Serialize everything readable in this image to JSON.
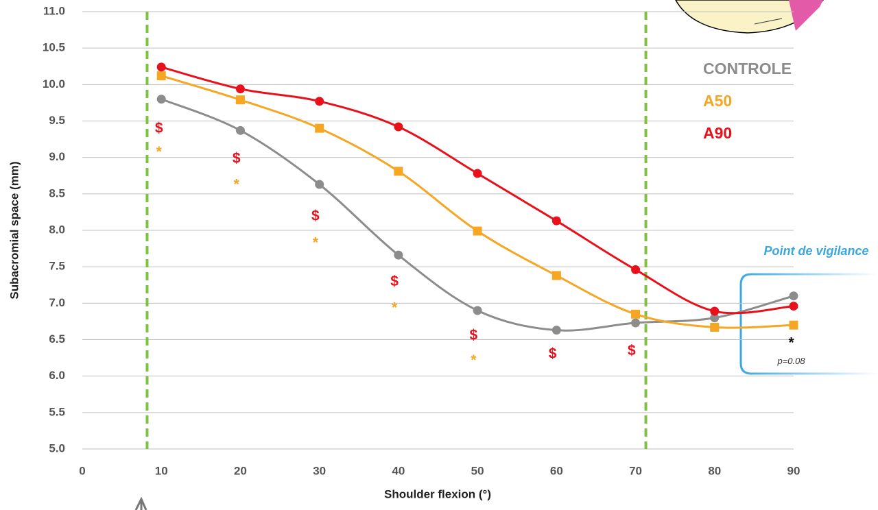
{
  "chart_data": {
    "type": "line",
    "x_label": "Shoulder flexion (°)",
    "y_label": "Subacromial space (mm)",
    "x": [
      10,
      20,
      30,
      40,
      50,
      60,
      70,
      80,
      90
    ],
    "series": [
      {
        "name": "CONTROLE",
        "color": "#8c8c8c",
        "marker": "circle",
        "values": [
          9.8,
          9.37,
          8.63,
          7.66,
          6.9,
          6.63,
          6.73,
          6.8,
          7.1
        ]
      },
      {
        "name": "A50",
        "color": "#f5a623",
        "marker": "square",
        "values": [
          10.12,
          9.79,
          9.4,
          8.81,
          7.99,
          7.38,
          6.85,
          6.67,
          6.7
        ]
      },
      {
        "name": "A90",
        "color": "#e8101a",
        "marker": "circle",
        "values": [
          10.24,
          9.94,
          9.77,
          9.42,
          8.78,
          8.13,
          7.46,
          6.89,
          6.96
        ]
      }
    ],
    "xlim": [
      0,
      90
    ],
    "xticks": [
      0,
      10,
      20,
      30,
      40,
      50,
      60,
      70,
      80,
      90
    ],
    "ylim": [
      5,
      11
    ],
    "yticks": [
      {
        "value": 5,
        "label": "5.0"
      },
      5.5,
      {
        "value": 6,
        "label": "6.0"
      },
      6.5,
      {
        "value": 7,
        "label": "7.0"
      },
      7.5,
      {
        "value": 8,
        "label": "8.0"
      },
      8.5,
      {
        "value": 9,
        "label": "9.0"
      },
      9.5,
      {
        "value": 10,
        "label": "10.0"
      },
      10.5,
      {
        "value": 11,
        "label": "11.0"
      }
    ],
    "grid": true,
    "vlines": {
      "color": "#7dc242",
      "values": [
        8.2,
        71.3
      ]
    },
    "annotations": [
      {
        "text": "$",
        "x": 9.7,
        "y": 9.39,
        "color": "#e8101a"
      },
      {
        "text": "*",
        "x": 9.7,
        "y": 9.07,
        "color": "#f5a623"
      },
      {
        "text": "$",
        "x": 19.5,
        "y": 8.98,
        "color": "#e8101a"
      },
      {
        "text": "*",
        "x": 19.5,
        "y": 8.62,
        "color": "#f5a623"
      },
      {
        "text": "$",
        "x": 29.5,
        "y": 8.19,
        "color": "#e8101a"
      },
      {
        "text": "*",
        "x": 29.5,
        "y": 7.82,
        "color": "#f5a623"
      },
      {
        "text": "$",
        "x": 39.5,
        "y": 7.29,
        "color": "#e8101a"
      },
      {
        "text": "*",
        "x": 39.5,
        "y": 6.93,
        "color": "#f5a623"
      },
      {
        "text": "$",
        "x": 49.5,
        "y": 6.55,
        "color": "#e8101a"
      },
      {
        "text": "*",
        "x": 49.5,
        "y": 6.21,
        "color": "#f5a623"
      },
      {
        "text": "$",
        "x": 59.5,
        "y": 6.3,
        "color": "#e8101a"
      },
      {
        "text": "$",
        "x": 69.5,
        "y": 6.34,
        "color": "#e8101a"
      },
      {
        "text": "*",
        "x": 89.7,
        "y": 6.45,
        "color": "#111"
      },
      {
        "text": "p=0.08",
        "x": 89.7,
        "y": 6.2,
        "color": "#333",
        "small": true
      }
    ],
    "callout": "Point de vigilance"
  }
}
